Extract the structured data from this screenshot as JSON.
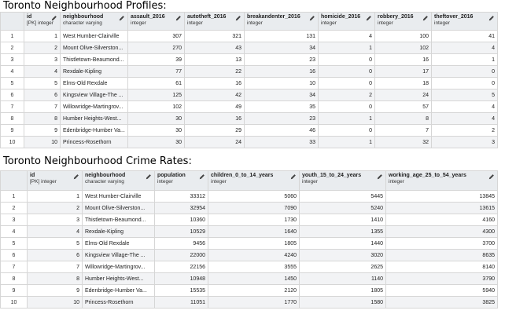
{
  "profiles": {
    "title": "Toronto Neighbourhood Profiles:",
    "columns": [
      {
        "name": "id",
        "type": "[PK] integer"
      },
      {
        "name": "neighbourhood",
        "type": "character varying"
      },
      {
        "name": "assault_2016",
        "type": "integer"
      },
      {
        "name": "autotheft_2016",
        "type": "integer"
      },
      {
        "name": "breakandenter_2016",
        "type": "integer"
      },
      {
        "name": "homicide_2016",
        "type": "integer"
      },
      {
        "name": "robbery_2016",
        "type": "integer"
      },
      {
        "name": "theftover_2016",
        "type": "integer"
      }
    ],
    "rows": [
      [
        "1",
        "1",
        "West Humber-Clairville",
        "307",
        "321",
        "131",
        "4",
        "100",
        "41"
      ],
      [
        "2",
        "2",
        "Mount Olive-Silverston...",
        "270",
        "43",
        "34",
        "1",
        "102",
        "4"
      ],
      [
        "3",
        "3",
        "Thistletown-Beaumond...",
        "39",
        "13",
        "23",
        "0",
        "16",
        "1"
      ],
      [
        "4",
        "4",
        "Rexdale-Kipling",
        "77",
        "22",
        "16",
        "0",
        "17",
        "0"
      ],
      [
        "5",
        "5",
        "Elms-Old Rexdale",
        "61",
        "16",
        "10",
        "0",
        "18",
        "0"
      ],
      [
        "6",
        "6",
        "Kingsview Village-The ...",
        "125",
        "42",
        "34",
        "2",
        "24",
        "5"
      ],
      [
        "7",
        "7",
        "Willowridge-Martingrov...",
        "102",
        "49",
        "35",
        "0",
        "57",
        "4"
      ],
      [
        "8",
        "8",
        "Humber Heights-West...",
        "30",
        "16",
        "23",
        "1",
        "8",
        "4"
      ],
      [
        "9",
        "9",
        "Edenbridge-Humber Va...",
        "30",
        "29",
        "46",
        "0",
        "7",
        "2"
      ],
      [
        "10",
        "10",
        "Princess-Rosethorn",
        "30",
        "24",
        "33",
        "1",
        "32",
        "3"
      ]
    ]
  },
  "crime_rates": {
    "title": "Toronto Neighbourhood Crime Rates:",
    "columns": [
      {
        "name": "id",
        "type": "[PK] integer"
      },
      {
        "name": "neighbourhood",
        "type": "character varying"
      },
      {
        "name": "population",
        "type": "integer"
      },
      {
        "name": "children_0_to_14_years",
        "type": "integer"
      },
      {
        "name": "youth_15_to_24_years",
        "type": "integer"
      },
      {
        "name": "working_age_25_to_54_years",
        "type": "integer"
      }
    ],
    "rows": [
      [
        "1",
        "1",
        "West Humber-Clairville",
        "33312",
        "5060",
        "5445",
        "13845"
      ],
      [
        "2",
        "2",
        "Mount Olive-Silverston...",
        "32954",
        "7090",
        "5240",
        "13615"
      ],
      [
        "3",
        "3",
        "Thistletown-Beaumond...",
        "10360",
        "1730",
        "1410",
        "4160"
      ],
      [
        "4",
        "4",
        "Rexdale-Kipling",
        "10529",
        "1640",
        "1355",
        "4300"
      ],
      [
        "5",
        "5",
        "Elms-Old Rexdale",
        "9456",
        "1805",
        "1440",
        "3700"
      ],
      [
        "6",
        "6",
        "Kingsview Village-The ...",
        "22000",
        "4240",
        "3020",
        "8635"
      ],
      [
        "7",
        "7",
        "Willowridge-Martingrov...",
        "22156",
        "3555",
        "2625",
        "8140"
      ],
      [
        "8",
        "8",
        "Humber Heights-West...",
        "10948",
        "1450",
        "1140",
        "3790"
      ],
      [
        "9",
        "9",
        "Edenbridge-Humber Va...",
        "15535",
        "2120",
        "1805",
        "5940"
      ],
      [
        "10",
        "10",
        "Princess-Rosethorn",
        "11051",
        "1770",
        "1580",
        "3825"
      ]
    ]
  }
}
